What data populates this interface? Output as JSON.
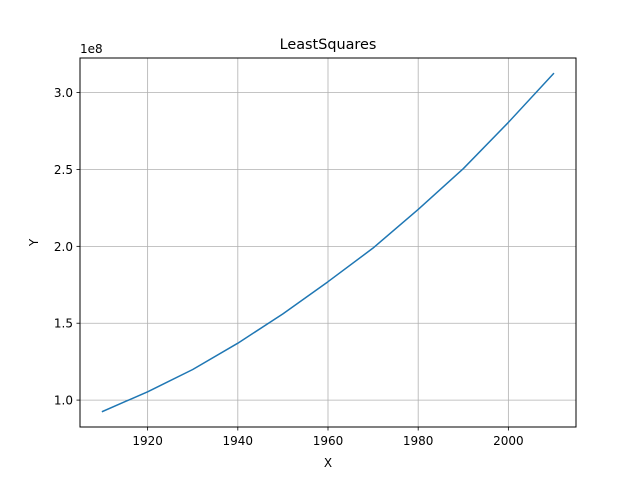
{
  "chart_data": {
    "type": "line",
    "title": "LeastSquares",
    "xlabel": "X",
    "ylabel": "Y",
    "y_offset_label": "1e8",
    "grid": true,
    "xlim": [
      1905,
      2015
    ],
    "ylim": [
      0.825,
      3.225
    ],
    "x_ticks": [
      1920,
      1940,
      1960,
      1980,
      2000
    ],
    "x_tick_labels": [
      "1920",
      "1940",
      "1960",
      "1980",
      "2000"
    ],
    "y_ticks": [
      1.0,
      1.5,
      2.0,
      2.5,
      3.0
    ],
    "y_tick_labels": [
      "1.0",
      "1.5",
      "2.0",
      "2.5",
      "3.0"
    ],
    "series": [
      {
        "color": "#1f77b4",
        "x": [
          1910,
          1920,
          1930,
          1940,
          1950,
          1960,
          1970,
          1980,
          1990,
          2000,
          2010
        ],
        "y": [
          0.926,
          1.054,
          1.199,
          1.37,
          1.561,
          1.77,
          1.989,
          2.24,
          2.505,
          2.806,
          3.123
        ]
      }
    ]
  }
}
